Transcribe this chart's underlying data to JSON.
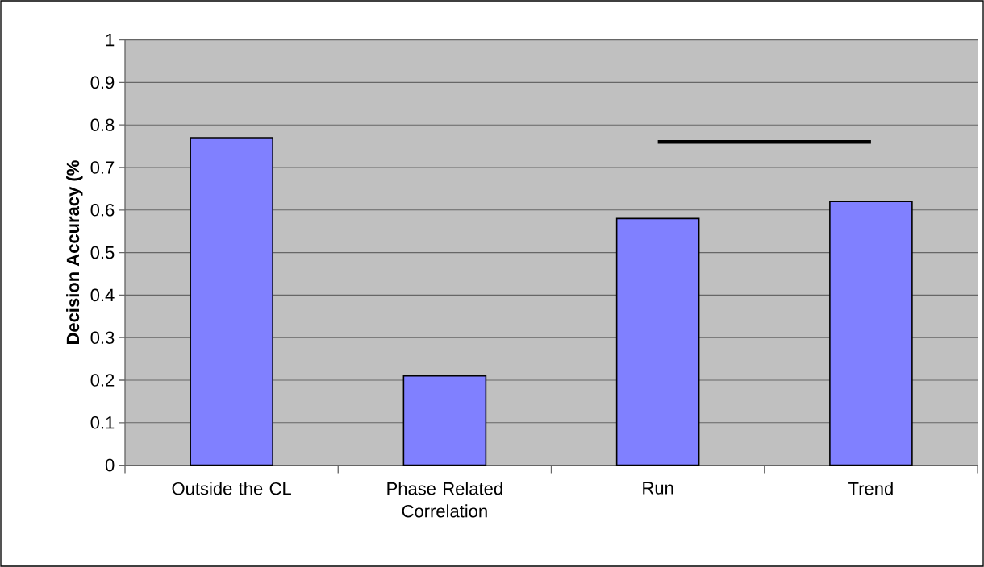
{
  "chart_data": {
    "type": "bar",
    "ylabel": "Decision Accuracy (%",
    "categories": [
      "Outside the CL",
      "Phase Related Correlation",
      "Run",
      "Trend"
    ],
    "series": [
      {
        "type": "bar",
        "color": "#8080ff",
        "values": [
          0.77,
          0.21,
          0.58,
          0.62
        ]
      },
      {
        "type": "line",
        "color": "#000000",
        "values": [
          null,
          null,
          0.76,
          0.76
        ]
      }
    ],
    "ylim": [
      0,
      1
    ],
    "yticks": [
      0,
      0.1,
      0.2,
      0.3,
      0.4,
      0.5,
      0.6,
      0.7,
      0.8,
      0.9,
      1
    ],
    "grid": "y"
  }
}
